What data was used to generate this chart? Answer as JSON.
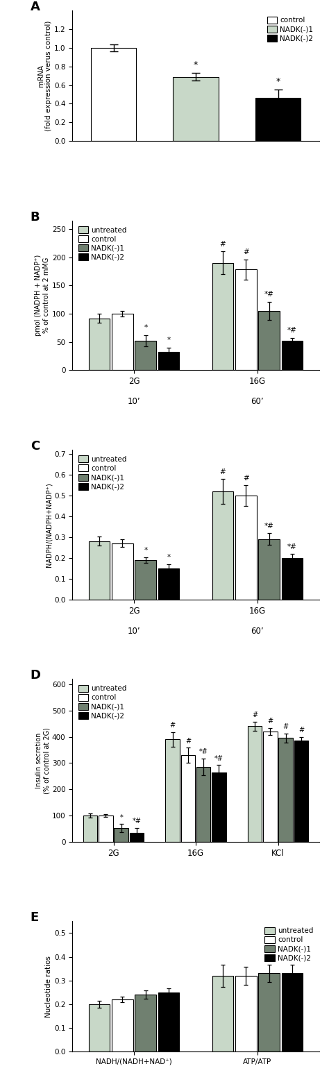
{
  "panel_A": {
    "label": "A",
    "bars": [
      1.0,
      0.69,
      0.46
    ],
    "errors": [
      0.04,
      0.04,
      0.09
    ],
    "colors": [
      "white",
      "#c8d8c8",
      "black"
    ],
    "edgecolors": [
      "black",
      "black",
      "black"
    ],
    "ylabel": "mRNA\n(fold expression verus control)",
    "ylim": [
      0,
      1.4
    ],
    "yticks": [
      0.0,
      0.2,
      0.4,
      0.6,
      0.8,
      1.0,
      1.2
    ],
    "sig_stars": [
      "",
      "*",
      "*"
    ],
    "legend_labels": [
      "control",
      "NADK(-)1",
      "NADK(-)2"
    ],
    "legend_colors": [
      "white",
      "#c8d8c8",
      "black"
    ]
  },
  "panel_B": {
    "label": "B",
    "values": [
      [
        92,
        100,
        52,
        33
      ],
      [
        190,
        178,
        105,
        52
      ]
    ],
    "errors": [
      [
        8,
        5,
        10,
        7
      ],
      [
        20,
        18,
        16,
        5
      ]
    ],
    "colors": [
      "#c8d8c8",
      "white",
      "#708070",
      "black"
    ],
    "edgecolors": [
      "black",
      "black",
      "black",
      "black"
    ],
    "ylabel": "pmol (NADPH + NADP⁺)\n% of control at 2 mMG",
    "ylim": [
      0,
      265
    ],
    "yticks": [
      0,
      50,
      100,
      150,
      200,
      250
    ],
    "sig_stars": [
      [
        "",
        "",
        "*",
        "*"
      ],
      [
        "#",
        "#",
        "*#",
        "*#"
      ]
    ],
    "xtick_labels": [
      "2G",
      "16G"
    ],
    "xtick_sublabels": [
      "10’",
      "60’"
    ],
    "legend_labels": [
      "untreated",
      "control",
      "NADK(-)1",
      "NADK(-)2"
    ],
    "legend_colors": [
      "#c8d8c8",
      "white",
      "#708070",
      "black"
    ]
  },
  "panel_C": {
    "label": "C",
    "values": [
      [
        0.28,
        0.27,
        0.19,
        0.15
      ],
      [
        0.52,
        0.5,
        0.29,
        0.2
      ]
    ],
    "errors": [
      [
        0.022,
        0.018,
        0.013,
        0.018
      ],
      [
        0.06,
        0.05,
        0.028,
        0.018
      ]
    ],
    "colors": [
      "#c8d8c8",
      "white",
      "#708070",
      "black"
    ],
    "edgecolors": [
      "black",
      "black",
      "black",
      "black"
    ],
    "ylabel": "NADPH/(NADPH+NADP⁺)",
    "ylim": [
      0,
      0.72
    ],
    "yticks": [
      0.0,
      0.1,
      0.2,
      0.3,
      0.4,
      0.5,
      0.6,
      0.7
    ],
    "sig_stars": [
      [
        "",
        "",
        "*",
        "*"
      ],
      [
        "#",
        "#",
        "*#",
        "*#"
      ]
    ],
    "xtick_labels": [
      "2G",
      "16G"
    ],
    "xtick_sublabels": [
      "10’",
      "60’"
    ],
    "legend_labels": [
      "untreated",
      "control",
      "NADK(-)1",
      "NADK(-)2"
    ],
    "legend_colors": [
      "#c8d8c8",
      "white",
      "#708070",
      "black"
    ]
  },
  "panel_D": {
    "label": "D",
    "values": [
      [
        100,
        100,
        52,
        35
      ],
      [
        390,
        330,
        285,
        265
      ],
      [
        440,
        420,
        395,
        385
      ]
    ],
    "errors": [
      [
        8,
        5,
        16,
        18
      ],
      [
        28,
        28,
        32,
        28
      ],
      [
        18,
        14,
        18,
        14
      ]
    ],
    "colors": [
      "#c8d8c8",
      "white",
      "#708070",
      "black"
    ],
    "edgecolors": [
      "black",
      "black",
      "black",
      "black"
    ],
    "ylabel": "Insulin secretion\n(% of control at 2G)",
    "ylim": [
      0,
      620
    ],
    "yticks": [
      0,
      100,
      200,
      300,
      400,
      500,
      600
    ],
    "sig_stars": [
      [
        "",
        "",
        "*",
        "*#"
      ],
      [
        "#",
        "#",
        "*#",
        "*#"
      ],
      [
        "#",
        "#",
        "#",
        "#"
      ]
    ],
    "xtick_labels": [
      "2G",
      "16G",
      "KCl"
    ],
    "legend_labels": [
      "untreated",
      "control",
      "NADK(-)1",
      "NADK(-)2"
    ],
    "legend_colors": [
      "#c8d8c8",
      "white",
      "#708070",
      "black"
    ]
  },
  "panel_E": {
    "label": "E",
    "values": [
      [
        0.2,
        0.22,
        0.24,
        0.25
      ],
      [
        0.32,
        0.32,
        0.33,
        0.33
      ]
    ],
    "errors": [
      [
        0.014,
        0.013,
        0.018,
        0.018
      ],
      [
        0.048,
        0.038,
        0.038,
        0.038
      ]
    ],
    "colors": [
      "#c8d8c8",
      "white",
      "#708070",
      "black"
    ],
    "edgecolors": [
      "black",
      "black",
      "black",
      "black"
    ],
    "ylabel": "Nucleotide ratios",
    "ylim": [
      0,
      0.55
    ],
    "yticks": [
      0.0,
      0.1,
      0.2,
      0.3,
      0.4,
      0.5
    ],
    "sig_stars": [
      [
        "",
        "",
        "",
        ""
      ],
      [
        "",
        "",
        "",
        ""
      ]
    ],
    "xtick_labels": [
      "NADH/(NADH+NAD⁺)",
      "ATP/ATP"
    ],
    "legend_labels": [
      "untreated",
      "control",
      "NADK(-)1",
      "NADK(-)2"
    ],
    "legend_colors": [
      "#c8d8c8",
      "white",
      "#708070",
      "black"
    ]
  }
}
